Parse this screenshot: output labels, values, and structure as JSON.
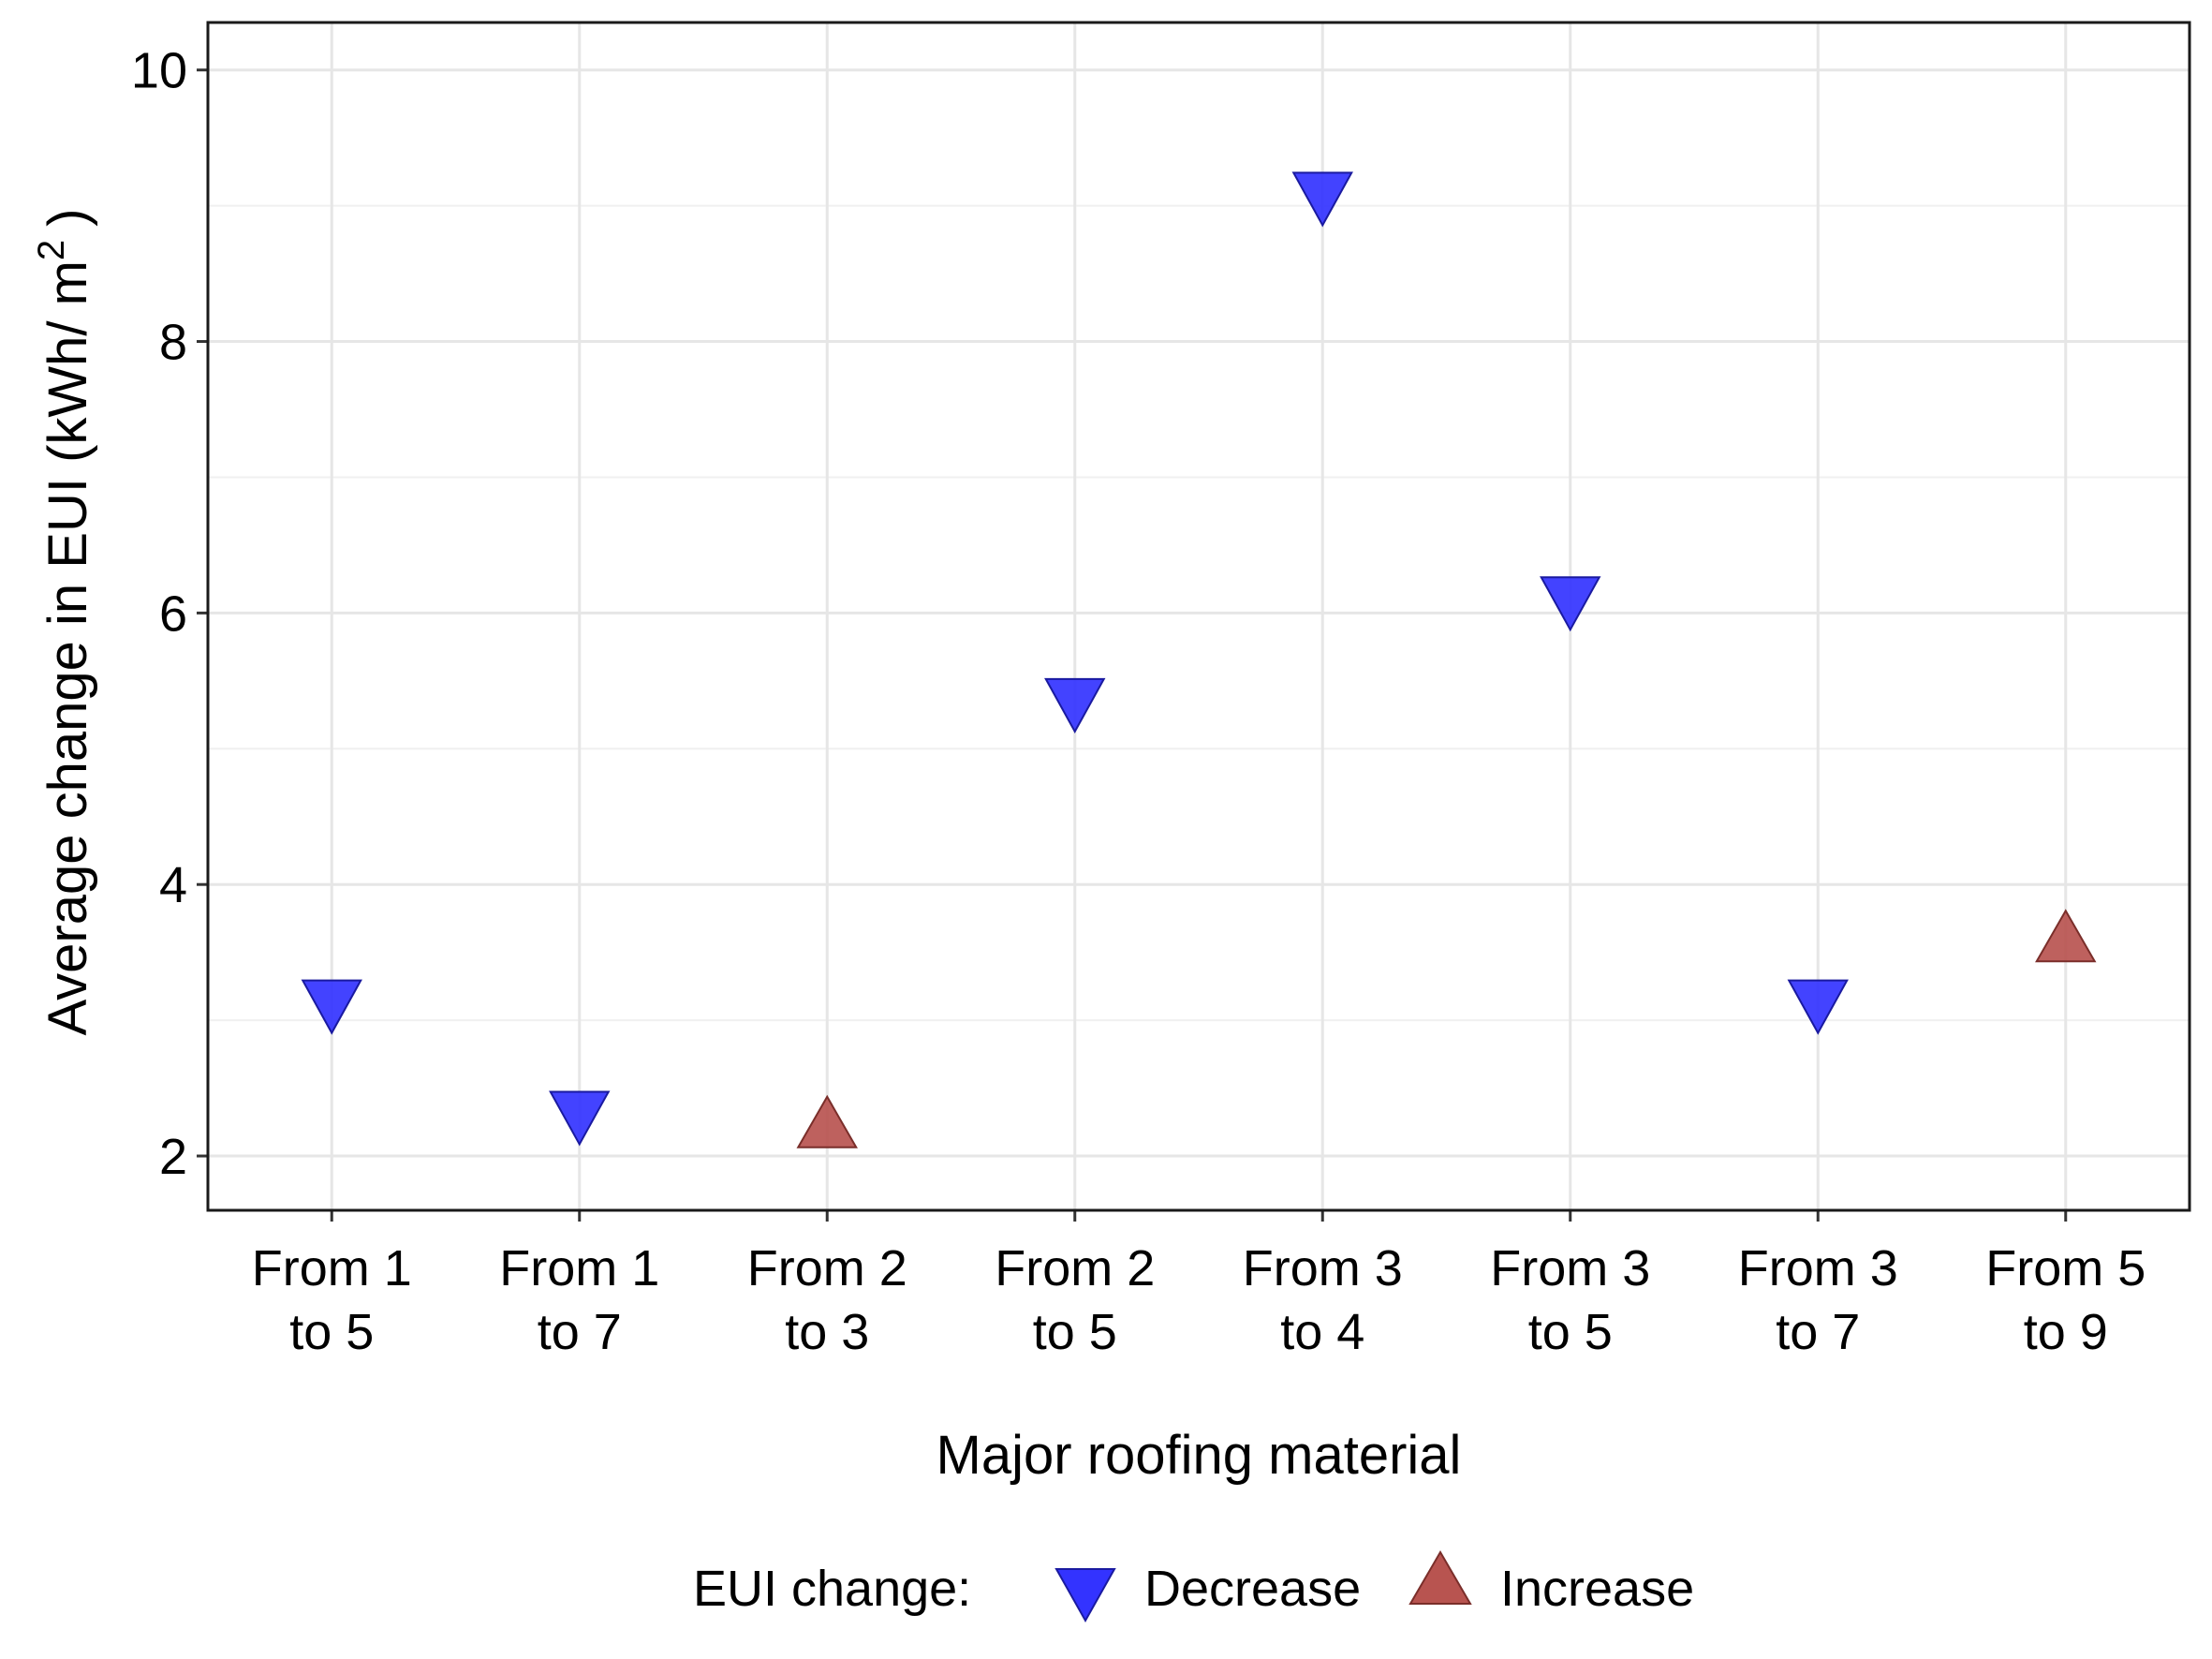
{
  "chart_data": {
    "type": "scatter",
    "xlabel": "Major roofing material",
    "ylabel": "Average change in EUI (kWh/ m",
    "ylabel_superscript": "2",
    "ylabel_close": ")",
    "ylim": [
      1.6,
      10.35
    ],
    "yticks": [
      "2",
      "4",
      "6",
      "8",
      "10"
    ],
    "grid": true,
    "categories": [
      [
        "From  1",
        "to 5"
      ],
      [
        "From 1",
        "to 7"
      ],
      [
        "From 2",
        "to 3"
      ],
      [
        "From 2",
        "to 5"
      ],
      [
        "From 3",
        "to 4"
      ],
      [
        "From 3",
        "to 5"
      ],
      [
        "From 3",
        "to 7"
      ],
      [
        "From 5",
        "to 9"
      ]
    ],
    "points": [
      {
        "category": 0,
        "y": 3.1,
        "series": "Decrease"
      },
      {
        "category": 1,
        "y": 2.28,
        "series": "Decrease"
      },
      {
        "category": 2,
        "y": 2.25,
        "series": "Increase"
      },
      {
        "category": 3,
        "y": 5.32,
        "series": "Decrease"
      },
      {
        "category": 4,
        "y": 9.05,
        "series": "Decrease"
      },
      {
        "category": 5,
        "y": 6.07,
        "series": "Decrease"
      },
      {
        "category": 6,
        "y": 3.1,
        "series": "Decrease"
      },
      {
        "category": 7,
        "y": 3.62,
        "series": "Increase"
      }
    ],
    "legend": {
      "title": "EUI change:",
      "position": "bottom",
      "entries": [
        {
          "name": "Decrease",
          "shape": "triangle-down",
          "color": "#3333ff"
        },
        {
          "name": "Increase",
          "shape": "triangle-up",
          "color": "#b85450"
        }
      ]
    },
    "colors": {
      "Decrease": "#3333ff",
      "Increase": "#b85450"
    }
  }
}
